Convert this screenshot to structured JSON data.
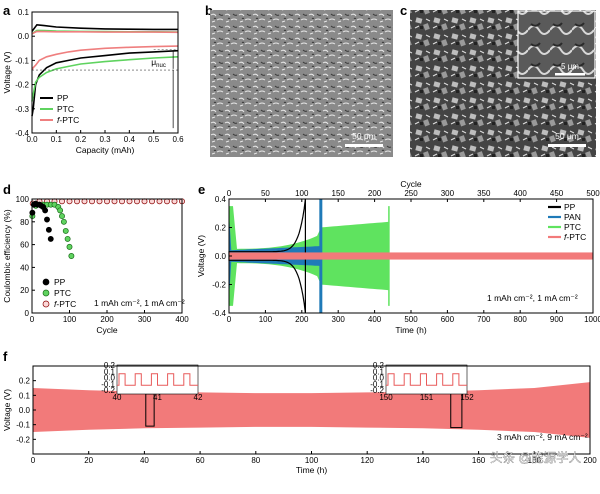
{
  "panel_labels": {
    "a": "a",
    "b": "b",
    "c": "c",
    "d": "d",
    "e": "e",
    "f": "f"
  },
  "chart_data": [
    {
      "id": "a",
      "type": "line",
      "xlabel": "Capacity (mAh)",
      "ylabel": "Voltage (V)",
      "xlim": [
        0,
        0.6
      ],
      "ylim": [
        -0.4,
        0.1
      ],
      "xticks": [
        "0.0",
        "0.1",
        "0.2",
        "0.3",
        "0.4",
        "0.5",
        "0.6"
      ],
      "yticks": [
        "0.1",
        "0.0",
        "-0.1",
        "-0.2",
        "-0.3",
        "-0.4"
      ],
      "annotation": "μ",
      "annotation_sub": "nuc",
      "series": [
        {
          "name": "PP",
          "color": "#000000",
          "charge_x": [
            0,
            0.02,
            0.05,
            0.1,
            0.2,
            0.3,
            0.4,
            0.5,
            0.6
          ],
          "charge_y": [
            0.02,
            0.047,
            0.044,
            0.038,
            0.033,
            0.03,
            0.029,
            0.028,
            0.028
          ],
          "discharge_x": [
            0,
            0.005,
            0.015,
            0.03,
            0.06,
            0.1,
            0.15,
            0.2,
            0.3,
            0.4,
            0.5,
            0.6
          ],
          "discharge_y": [
            -0.33,
            -0.3,
            -0.2,
            -0.16,
            -0.13,
            -0.11,
            -0.1,
            -0.09,
            -0.08,
            -0.07,
            -0.065,
            -0.06
          ]
        },
        {
          "name": "PTC",
          "color": "#5fd35f",
          "charge_x": [
            0,
            0.02,
            0.05,
            0.1,
            0.2,
            0.3,
            0.4,
            0.5,
            0.6
          ],
          "charge_y": [
            0.01,
            0.024,
            0.023,
            0.021,
            0.02,
            0.019,
            0.018,
            0.018,
            0.017
          ],
          "discharge_x": [
            0,
            0.005,
            0.015,
            0.03,
            0.06,
            0.1,
            0.15,
            0.2,
            0.3,
            0.4,
            0.5,
            0.6
          ],
          "discharge_y": [
            -0.27,
            -0.24,
            -0.19,
            -0.17,
            -0.15,
            -0.135,
            -0.125,
            -0.115,
            -0.105,
            -0.097,
            -0.09,
            -0.085
          ]
        },
        {
          "name": "f-PTC",
          "color": "#ef7f7f",
          "charge_x": [
            0,
            0.02,
            0.05,
            0.1,
            0.2,
            0.3,
            0.4,
            0.5,
            0.6
          ],
          "charge_y": [
            0.01,
            0.02,
            0.019,
            0.018,
            0.018,
            0.017,
            0.017,
            0.017,
            0.016
          ],
          "discharge_x": [
            0,
            0.005,
            0.015,
            0.03,
            0.06,
            0.1,
            0.15,
            0.2,
            0.3,
            0.4,
            0.5,
            0.6
          ],
          "discharge_y": [
            -0.14,
            -0.13,
            -0.12,
            -0.1,
            -0.085,
            -0.075,
            -0.065,
            -0.058,
            -0.05,
            -0.046,
            -0.043,
            -0.041
          ]
        }
      ],
      "legend": [
        "PP",
        "PTC",
        "f-PTC"
      ]
    },
    {
      "id": "b",
      "type": "image",
      "scale_bar": "50 μm"
    },
    {
      "id": "c",
      "type": "image",
      "scale_bar": "50 μm",
      "inset_scale_bar": "5 μm"
    },
    {
      "id": "d",
      "type": "scatter",
      "xlabel": "Cycle",
      "ylabel": "Coulombic efficiency (%)",
      "xlim": [
        0,
        400
      ],
      "ylim": [
        0,
        100
      ],
      "xticks": [
        "0",
        "100",
        "200",
        "300",
        "400"
      ],
      "yticks": [
        "100",
        "80",
        "60",
        "40",
        "20",
        "0"
      ],
      "condition": "1 mAh cm⁻², 1 mA cm⁻²",
      "series": [
        {
          "name": "PP",
          "color": "#000000",
          "x": [
            1,
            5,
            10,
            15,
            20,
            25,
            30,
            35,
            40,
            45,
            50
          ],
          "y": [
            88,
            95,
            96,
            95,
            95,
            94,
            93,
            90,
            82,
            73,
            65
          ]
        },
        {
          "name": "PTC",
          "color": "#5fd35f",
          "x": [
            1,
            10,
            20,
            30,
            40,
            50,
            60,
            70,
            75,
            80,
            85,
            90,
            95,
            100,
            105
          ],
          "y": [
            85,
            94,
            95,
            95,
            95,
            95,
            95,
            93,
            90,
            85,
            80,
            72,
            65,
            58,
            50
          ]
        },
        {
          "name": "f-PTC",
          "color": "#ef7f7f",
          "x": [
            2,
            20,
            40,
            60,
            80,
            100,
            120,
            140,
            160,
            180,
            200,
            220,
            240,
            260,
            280,
            300,
            320,
            340,
            360,
            380,
            400
          ],
          "y": [
            96,
            98,
            98,
            98,
            98,
            98,
            98,
            98,
            98,
            98,
            98,
            98,
            98,
            98,
            98,
            98,
            98,
            98,
            98,
            98,
            98
          ]
        }
      ],
      "legend": [
        "PP",
        "PTC",
        "f-PTC"
      ]
    },
    {
      "id": "e",
      "type": "area",
      "xlabel": "Time (h)",
      "top_xlabel": "Cycle",
      "ylabel": "Voltage (V)",
      "xlim": [
        0,
        1000
      ],
      "top_xlim": [
        0,
        500
      ],
      "ylim": [
        -0.4,
        0.4
      ],
      "xticks": [
        "0",
        "100",
        "200",
        "300",
        "400",
        "500",
        "600",
        "700",
        "800",
        "900",
        "1000"
      ],
      "top_xticks": [
        "0",
        "50",
        "100",
        "150",
        "200",
        "250",
        "300",
        "350",
        "400",
        "450",
        "500"
      ],
      "yticks": [
        "0.4",
        "0.2",
        "0.0",
        "-0.2",
        "-0.4"
      ],
      "condition": "1 mAh cm⁻², 1 mA cm⁻²",
      "series": [
        {
          "name": "PP",
          "color": "#000000",
          "end_time_h": 210
        },
        {
          "name": "PAN",
          "color": "#1f7ab8",
          "end_time_h": 255
        },
        {
          "name": "PTC",
          "color": "#5fe35f",
          "end_time_h": 440
        },
        {
          "name": "f-PTC",
          "color": "#f27a7a",
          "end_time_h": 1000
        }
      ],
      "legend": [
        "PP",
        "PAN",
        "PTC",
        "f-PTC"
      ]
    },
    {
      "id": "f",
      "type": "area",
      "xlabel": "Time (h)",
      "ylabel": "Voltage (V)",
      "xlim": [
        0,
        200
      ],
      "ylim": [
        -0.3,
        0.3
      ],
      "xticks": [
        "0",
        "20",
        "40",
        "60",
        "80",
        "100",
        "120",
        "140",
        "160",
        "180",
        "200"
      ],
      "yticks": [
        "0.2",
        "0.1",
        "0.0",
        "-0.1",
        "-0.2"
      ],
      "color": "#f27a7a",
      "envelope_t": [
        0,
        20,
        40,
        60,
        80,
        100,
        120,
        140,
        160,
        180,
        200
      ],
      "envelope_v": [
        0.15,
        0.135,
        0.125,
        0.12,
        0.115,
        0.115,
        0.12,
        0.125,
        0.135,
        0.15,
        0.19
      ],
      "condition": "3 mAh cm⁻², 9 mA cm⁻²",
      "insets": [
        {
          "xticks": [
            "40",
            "41",
            "42"
          ],
          "yticks": [
            "0.2",
            "0.1",
            "0.0",
            "-0.1",
            "-0.2"
          ]
        },
        {
          "xticks": [
            "150",
            "151",
            "152"
          ],
          "yticks": [
            "0.2",
            "0.1",
            "0.0",
            "-0.1",
            "-0.2"
          ]
        }
      ]
    }
  ],
  "watermark": "头条 @能源学人"
}
